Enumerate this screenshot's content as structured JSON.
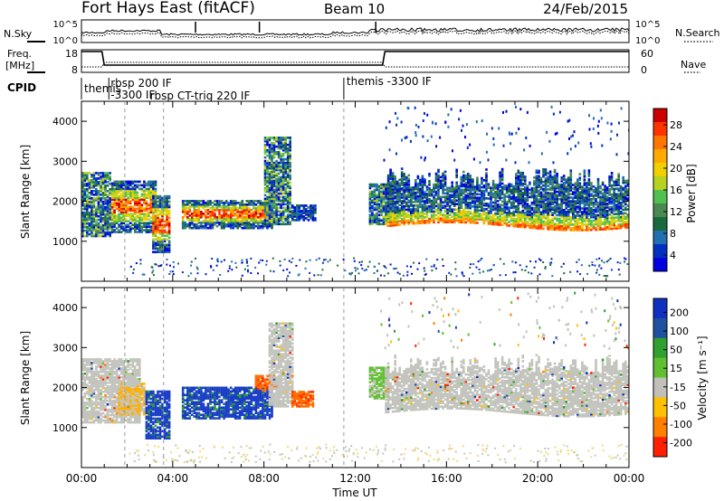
{
  "header": {
    "title": "Fort Hays East (fitACF)",
    "beam": "Beam 10",
    "date": "24/Feb/2015"
  },
  "param_panel": {
    "nsky_label": "N.Sky",
    "nsky_ticks": [
      "10^5",
      "10^0"
    ],
    "nsky_ticks_right": [
      "10^5",
      "10^0"
    ],
    "nsearch_label": "N.Search",
    "freq_label_1": "Freq.",
    "freq_label_2": "[MHz]",
    "freq_ticks": [
      "18",
      "8"
    ],
    "nave_label": "Nave",
    "nave_ticks": [
      "60",
      "0"
    ],
    "cpid_label": "CPID",
    "cpid_segments": [
      {
        "label": "themis",
        "start_hr": 0.0,
        "end_hr": 1.2
      },
      {
        "label": "-3300 IF",
        "start_hr": 1.2,
        "end_hr": 2.6
      },
      {
        "label": "rbsp 200 IF",
        "start_hr": 1.8,
        "end_hr": 2.6
      },
      {
        "label": "rbsp CT-trig 220 IF",
        "start_hr": 2.6,
        "end_hr": 11.5
      },
      {
        "label": "themis -3300 IF",
        "start_hr": 11.5,
        "end_hr": 24.0
      }
    ]
  },
  "power_colorbar": {
    "title": "Power [dB]",
    "ticks": [
      "28",
      "24",
      "20",
      "16",
      "12",
      "8",
      "4"
    ],
    "colors": [
      "#cc0000",
      "#ff3300",
      "#ff7700",
      "#ffaa00",
      "#f0d000",
      "#b8d020",
      "#50c050",
      "#4a8a50",
      "#1a6a40",
      "#2070b0",
      "#0030c0",
      "#0000e0"
    ]
  },
  "velocity_colorbar": {
    "title": "Velocity [m s⁻¹]",
    "ticks": [
      "200",
      "100",
      "50",
      "15",
      "-15",
      "-50",
      "-100",
      "-200"
    ],
    "colors": [
      "#1030c0",
      "#2050a0",
      "#30a030",
      "#60c030",
      "#c0c0b8",
      "#ffc000",
      "#ff8000",
      "#ff2000"
    ]
  },
  "chart_data": [
    {
      "type": "heatmap",
      "name": "Power",
      "ylabel": "Slant Range [km]",
      "ylim": [
        0,
        4500
      ],
      "yticks": [
        1000,
        2000,
        3000,
        4000
      ],
      "xlim_hours": [
        0,
        24
      ],
      "regions": [
        {
          "t0": 0.0,
          "t1": 1.3,
          "r0": 1100,
          "r1": 2700,
          "level": "mid"
        },
        {
          "t0": 1.3,
          "t1": 3.3,
          "r0": 1200,
          "r1": 2500,
          "level": "high"
        },
        {
          "t0": 3.1,
          "t1": 3.9,
          "r0": 700,
          "r1": 2100,
          "level": "high"
        },
        {
          "t0": 4.4,
          "t1": 8.3,
          "r0": 1300,
          "r1": 2000,
          "level": "high"
        },
        {
          "t0": 8.0,
          "t1": 9.1,
          "r0": 1400,
          "r1": 3600,
          "level": "mid"
        },
        {
          "t0": 9.2,
          "t1": 10.2,
          "r0": 1500,
          "r1": 1900,
          "level": "low"
        },
        {
          "t0": 12.6,
          "t1": 13.6,
          "r0": 1400,
          "r1": 2400,
          "level": "mid"
        },
        {
          "t0": 13.3,
          "t1": 24.0,
          "r0": 1350,
          "r1": 3000,
          "level": "band"
        }
      ]
    },
    {
      "type": "heatmap",
      "name": "Velocity",
      "ylabel": "Slant Range [km]",
      "ylim": [
        0,
        4500
      ],
      "yticks": [
        1000,
        2000,
        3000,
        4000
      ],
      "xlim_hours": [
        0,
        24
      ],
      "xlabel": "Time UT",
      "xticks": [
        "00:00",
        "04:00",
        "08:00",
        "12:00",
        "16:00",
        "20:00",
        "00:00"
      ],
      "regions": [
        {
          "t0": 0.0,
          "t1": 2.6,
          "r0": 1100,
          "r1": 2700,
          "v": "slow"
        },
        {
          "t0": 1.6,
          "t1": 2.8,
          "r0": 1300,
          "r1": 2100,
          "v": "away"
        },
        {
          "t0": 2.8,
          "t1": 3.9,
          "r0": 700,
          "r1": 1900,
          "v": "toward"
        },
        {
          "t0": 4.4,
          "t1": 8.3,
          "r0": 1200,
          "r1": 2000,
          "v": "toward"
        },
        {
          "t0": 7.6,
          "t1": 8.5,
          "r0": 1900,
          "r1": 2300,
          "v": "away_strong"
        },
        {
          "t0": 8.2,
          "t1": 9.2,
          "r0": 1500,
          "r1": 3600,
          "v": "slow"
        },
        {
          "t0": 9.2,
          "t1": 10.1,
          "r0": 1500,
          "r1": 1900,
          "v": "away_strong"
        },
        {
          "t0": 12.6,
          "t1": 13.4,
          "r0": 1700,
          "r1": 2500,
          "v": "green"
        },
        {
          "t0": 13.3,
          "t1": 24.0,
          "r0": 1200,
          "r1": 3000,
          "v": "slow"
        }
      ]
    }
  ]
}
